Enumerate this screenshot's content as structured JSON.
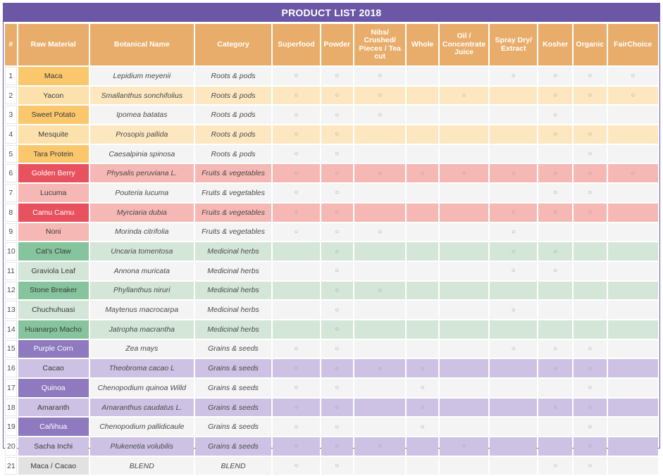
{
  "title": "PRODUCT LIST 2018",
  "headers": [
    "#",
    "Raw Material",
    "Botanical Name",
    "Category",
    "Superfood",
    "Powder",
    "Nibs/ Crushed/ Pieces / Tea cut",
    "Whole",
    "Oil / Concentrate Juice",
    "Spray Dry/ Extract",
    "Kosher",
    "Organic",
    "FairChoice"
  ],
  "mark_symbol": "○",
  "rows": [
    {
      "n": "1",
      "raw": "Maca",
      "bot": "Lepidium meyenii",
      "cat": "Roots & pods",
      "marks": [
        1,
        1,
        1,
        0,
        0,
        1,
        1,
        1,
        1
      ]
    },
    {
      "n": "2",
      "raw": "Yacon",
      "bot": "Smallanthus sonchifolius",
      "cat": "Roots & pods",
      "marks": [
        1,
        1,
        1,
        0,
        1,
        0,
        1,
        1,
        1
      ]
    },
    {
      "n": "3",
      "raw": "Sweet Potato",
      "bot": "Ipomea batatas",
      "cat": "Roots & pods",
      "marks": [
        1,
        1,
        1,
        0,
        0,
        0,
        1,
        0,
        0
      ]
    },
    {
      "n": "4",
      "raw": "Mesquite",
      "bot": "Prosopis pallida",
      "cat": "Roots & pods",
      "marks": [
        1,
        1,
        0,
        0,
        0,
        0,
        1,
        1,
        0
      ]
    },
    {
      "n": "5",
      "raw": "Tara Protein",
      "bot": "Caesalpinia spinosa",
      "cat": "Roots & pods",
      "marks": [
        1,
        1,
        0,
        0,
        0,
        0,
        0,
        1,
        0
      ]
    },
    {
      "n": "6",
      "raw": "Golden Berry",
      "bot": "Physalis peruviana L.",
      "cat": "Fruits & vegetables",
      "marks": [
        1,
        1,
        1,
        1,
        1,
        1,
        1,
        1,
        1
      ]
    },
    {
      "n": "7",
      "raw": "Lucuma",
      "bot": "Pouteria lucuma",
      "cat": "Fruits & vegetables",
      "marks": [
        1,
        1,
        0,
        0,
        0,
        0,
        1,
        1,
        0
      ]
    },
    {
      "n": "8",
      "raw": "Camu Camu",
      "bot": "Myrciaria dubia",
      "cat": "Fruits & vegetables",
      "marks": [
        1,
        1,
        0,
        0,
        0,
        1,
        1,
        1,
        0
      ]
    },
    {
      "n": "9",
      "raw": "Noni",
      "bot": "Morinda citrifolia",
      "cat": "Fruits & vegetables",
      "marks": [
        1,
        1,
        1,
        0,
        0,
        1,
        0,
        0,
        0
      ]
    },
    {
      "n": "10",
      "raw": "Cat's Claw",
      "bot": "Uncaria tomentosa",
      "cat": "Medicinal herbs",
      "marks": [
        0,
        1,
        0,
        0,
        0,
        1,
        1,
        0,
        0
      ]
    },
    {
      "n": "11",
      "raw": "Graviola Leaf",
      "bot": "Annona muricata",
      "cat": "Medicinal herbs",
      "marks": [
        0,
        1,
        0,
        0,
        0,
        1,
        1,
        0,
        0
      ]
    },
    {
      "n": "12",
      "raw": "Stone Breaker",
      "bot": "Phyllanthus niruri",
      "cat": "Medicinal herbs",
      "marks": [
        0,
        1,
        1,
        0,
        0,
        0,
        0,
        0,
        0
      ]
    },
    {
      "n": "13",
      "raw": "Chuchuhuasi",
      "bot": "Maytenus macrocarpa",
      "cat": "Medicinal herbs",
      "marks": [
        0,
        1,
        0,
        0,
        0,
        1,
        0,
        0,
        0
      ]
    },
    {
      "n": "14",
      "raw": "Huanarpo Macho",
      "bot": "Jatropha macrantha",
      "cat": "Medicinal herbs",
      "marks": [
        0,
        1,
        0,
        0,
        0,
        0,
        0,
        0,
        0
      ]
    },
    {
      "n": "15",
      "raw": "Purple Corn",
      "bot": "Zea mays",
      "cat": "Grains & seeds",
      "marks": [
        1,
        1,
        0,
        0,
        0,
        1,
        1,
        1,
        0
      ]
    },
    {
      "n": "16",
      "raw": "Cacao",
      "bot": "Theobroma cacao L",
      "cat": "Grains & seeds",
      "marks": [
        1,
        1,
        1,
        1,
        0,
        0,
        1,
        1,
        0
      ]
    },
    {
      "n": "17",
      "raw": "Quinoa",
      "bot": "Chenopodium quinoa Willd",
      "cat": "Grains & seeds",
      "marks": [
        1,
        1,
        0,
        1,
        0,
        0,
        0,
        1,
        0
      ]
    },
    {
      "n": "18",
      "raw": "Amaranth",
      "bot": "Amaranthus caudatus L.",
      "cat": "Grains & seeds",
      "marks": [
        1,
        1,
        0,
        1,
        0,
        0,
        1,
        1,
        0
      ]
    },
    {
      "n": "19",
      "raw": "Cañihua",
      "bot": "Chenopodium pallidicaule",
      "cat": "Grains & seeds",
      "marks": [
        1,
        1,
        0,
        1,
        0,
        0,
        0,
        1,
        0
      ]
    },
    {
      "n": "20",
      "raw": "Sacha Inchi",
      "bot": "Plukenetia volubilis",
      "cat": "Grains & seeds",
      "marks": [
        1,
        1,
        1,
        0,
        1,
        0,
        0,
        1,
        0
      ]
    },
    {
      "n": "21",
      "raw": "Maca / Cacao",
      "bot": "BLEND",
      "cat": "BLEND",
      "marks": [
        1,
        1,
        0,
        0,
        0,
        0,
        1,
        1,
        0
      ]
    }
  ],
  "colors": {
    "header": "#6b57a6",
    "column_header": "#e8ad6a",
    "roots": "#fbc76d",
    "fruits": "#e8525e",
    "herbs": "#86c49d",
    "grains": "#8f79bf"
  }
}
